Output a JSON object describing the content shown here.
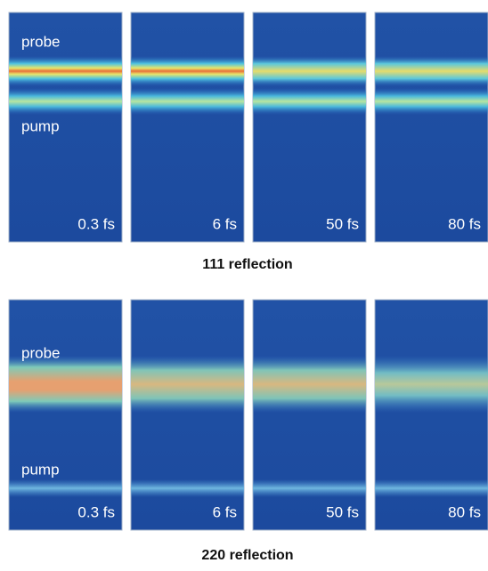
{
  "figures": [
    {
      "panels": [
        {
          "time": "0.3 fs"
        },
        {
          "time": "6 fs"
        },
        {
          "time": "50 fs"
        },
        {
          "time": "80 fs"
        }
      ],
      "probe_label": "probe",
      "pump_label": "pump",
      "caption": "111 reflection"
    },
    {
      "panels": [
        {
          "time": "0.3 fs"
        },
        {
          "time": "6 fs"
        },
        {
          "time": "50 fs"
        },
        {
          "time": "80 fs"
        }
      ],
      "probe_label": "probe",
      "pump_label": "pump",
      "caption": "220 reflection"
    }
  ]
}
